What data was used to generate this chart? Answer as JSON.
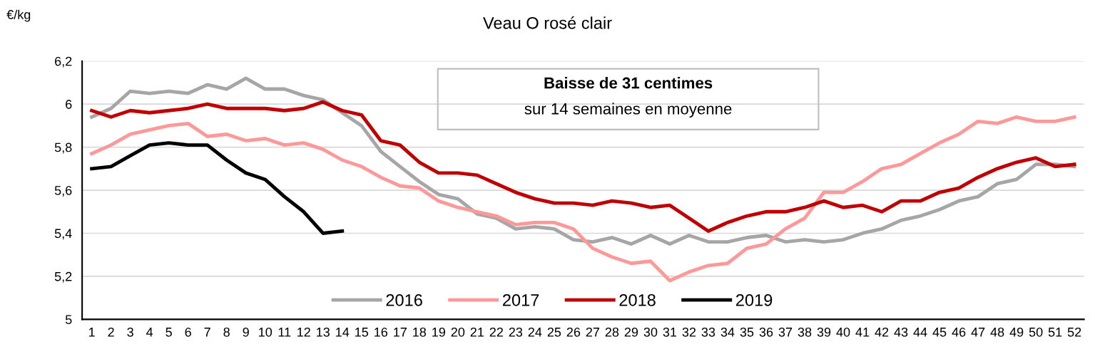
{
  "chart_data": {
    "type": "line",
    "title": "Veau O rosé clair",
    "ylabel": "€/kg",
    "categories": [
      "1",
      "2",
      "3",
      "4",
      "5",
      "6",
      "7",
      "8",
      "9",
      "10",
      "11",
      "12",
      "13",
      "14",
      "15",
      "16",
      "17",
      "18",
      "19",
      "20",
      "21",
      "22",
      "23",
      "24",
      "25",
      "26",
      "27",
      "28",
      "29",
      "30",
      "31",
      "32",
      "33",
      "34",
      "35",
      "36",
      "37",
      "38",
      "39",
      "40",
      "41",
      "42",
      "43",
      "44",
      "45",
      "46",
      "47",
      "48",
      "49",
      "50",
      "51",
      "52"
    ],
    "series": [
      {
        "name": "2016",
        "color": "#a6a6a6",
        "values": [
          5.94,
          5.98,
          6.06,
          6.05,
          6.06,
          6.05,
          6.09,
          6.07,
          6.12,
          6.07,
          6.07,
          6.04,
          6.02,
          5.96,
          5.9,
          5.78,
          5.71,
          5.64,
          5.58,
          5.56,
          5.49,
          5.47,
          5.42,
          5.43,
          5.42,
          5.37,
          5.36,
          5.38,
          5.35,
          5.39,
          5.35,
          5.39,
          5.36,
          5.36,
          5.38,
          5.39,
          5.36,
          5.37,
          5.36,
          5.37,
          5.4,
          5.42,
          5.46,
          5.48,
          5.51,
          5.55,
          5.57,
          5.63,
          5.65,
          5.72,
          5.72,
          5.71
        ]
      },
      {
        "name": "2017",
        "color": "#ff9999",
        "values": [
          5.77,
          5.81,
          5.86,
          5.88,
          5.9,
          5.91,
          5.85,
          5.86,
          5.83,
          5.84,
          5.81,
          5.82,
          5.79,
          5.74,
          5.71,
          5.66,
          5.62,
          5.61,
          5.55,
          5.52,
          5.5,
          5.48,
          5.44,
          5.45,
          5.45,
          5.42,
          5.33,
          5.29,
          5.26,
          5.27,
          5.18,
          5.22,
          5.25,
          5.26,
          5.33,
          5.35,
          5.42,
          5.47,
          5.59,
          5.59,
          5.64,
          5.7,
          5.72,
          5.77,
          5.82,
          5.86,
          5.92,
          5.91,
          5.94,
          5.92,
          5.92,
          5.94
        ]
      },
      {
        "name": "2018",
        "color": "#c00000",
        "values": [
          5.97,
          5.94,
          5.97,
          5.96,
          5.97,
          5.98,
          6.0,
          5.98,
          5.98,
          5.98,
          5.97,
          5.98,
          6.01,
          5.97,
          5.95,
          5.83,
          5.81,
          5.73,
          5.68,
          5.68,
          5.67,
          5.63,
          5.59,
          5.56,
          5.54,
          5.54,
          5.53,
          5.55,
          5.54,
          5.52,
          5.53,
          5.47,
          5.41,
          5.45,
          5.48,
          5.5,
          5.5,
          5.52,
          5.55,
          5.52,
          5.53,
          5.5,
          5.55,
          5.55,
          5.59,
          5.61,
          5.66,
          5.7,
          5.73,
          5.75,
          5.71,
          5.72
        ]
      },
      {
        "name": "2019",
        "color": "#000000",
        "values": [
          5.7,
          5.71,
          5.76,
          5.81,
          5.82,
          5.81,
          5.81,
          5.74,
          5.68,
          5.65,
          5.57,
          5.5,
          5.4,
          5.41,
          null,
          null,
          null,
          null,
          null,
          null,
          null,
          null,
          null,
          null,
          null,
          null,
          null,
          null,
          null,
          null,
          null,
          null,
          null,
          null,
          null,
          null,
          null,
          null,
          null,
          null,
          null,
          null,
          null,
          null,
          null,
          null,
          null,
          null,
          null,
          null,
          null,
          null
        ]
      }
    ],
    "ylim": [
      5,
      6.2
    ],
    "yticks": [
      5,
      {
        "value": 5.2,
        "label": "5,2"
      },
      {
        "value": 5.4,
        "label": "5,4"
      },
      {
        "value": 5.6,
        "label": "5,6"
      },
      {
        "value": 5.8,
        "label": "5,8"
      },
      6,
      {
        "value": 6.2,
        "label": "6,2"
      }
    ],
    "annotations": [
      "Baisse de 31 centimes",
      "sur 14 semaines en moyenne"
    ],
    "grid": "y",
    "legend": "bottom",
    "marker": "none",
    "line_style": "solid"
  }
}
